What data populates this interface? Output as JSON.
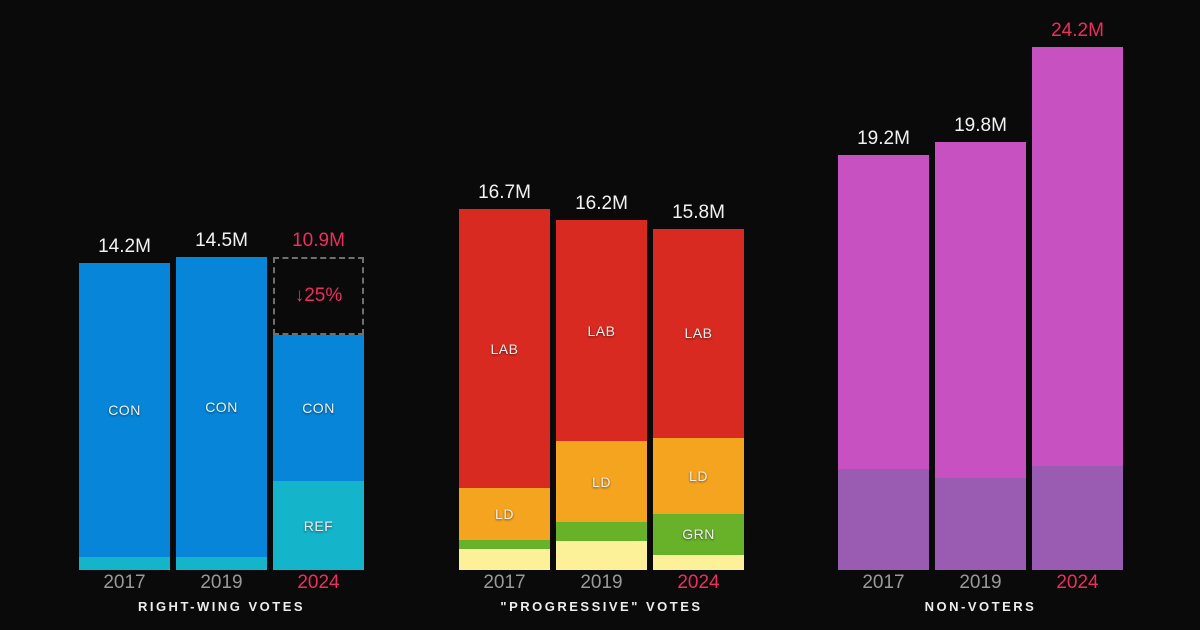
{
  "colors": {
    "background": "#0a0a0a",
    "con": "#0786d9",
    "ref": "#14b4ca",
    "lab": "#d92a22",
    "ld": "#f5a41f",
    "grn": "#68b229",
    "oth": "#fcf098",
    "nonvoter": "#c751c1",
    "nonvoter_shade": "#9a5cb3",
    "accent_pink": "#ed2d5d",
    "year_gray": "#999999",
    "label_white": "#f2f2f2",
    "ghost_border": "#6f6f6f"
  },
  "chart_data": {
    "type": "bar",
    "stacked": true,
    "unit": "M = millions of votes",
    "ylim": [
      0,
      24.2
    ],
    "categories": [
      "2017",
      "2019",
      "2024"
    ],
    "groups": [
      {
        "caption": "RIGHT-WING VOTES",
        "bars": [
          {
            "year": "2017",
            "year_highlight": false,
            "total": 14.2,
            "total_label": "14.2M",
            "total_label_highlight": false,
            "ghost": null,
            "segments": [
              {
                "label": "CON",
                "key": "con",
                "value": 13.6,
                "labeled": true
              },
              {
                "label": "",
                "key": "ref",
                "value": 0.6,
                "labeled": false
              }
            ]
          },
          {
            "year": "2019",
            "year_highlight": false,
            "total": 14.5,
            "total_label": "14.5M",
            "total_label_highlight": false,
            "ghost": null,
            "segments": [
              {
                "label": "CON",
                "key": "con",
                "value": 13.9,
                "labeled": true
              },
              {
                "label": "",
                "key": "ref",
                "value": 0.6,
                "labeled": false
              }
            ]
          },
          {
            "year": "2024",
            "year_highlight": true,
            "total": 10.9,
            "total_label": "10.9M",
            "total_label_highlight": true,
            "ghost": {
              "to_total": 14.5,
              "label": "↓25%"
            },
            "segments": [
              {
                "label": "CON",
                "key": "con",
                "value": 6.8,
                "labeled": true
              },
              {
                "label": "REF",
                "key": "ref",
                "value": 4.1,
                "labeled": true
              }
            ]
          }
        ]
      },
      {
        "caption": "\"PROGRESSIVE\" VOTES",
        "bars": [
          {
            "year": "2017",
            "year_highlight": false,
            "total": 16.7,
            "total_label": "16.7M",
            "total_label_highlight": false,
            "ghost": null,
            "segments": [
              {
                "label": "LAB",
                "key": "lab",
                "value": 12.9,
                "labeled": true
              },
              {
                "label": "LD",
                "key": "ld",
                "value": 2.4,
                "labeled": true
              },
              {
                "label": "",
                "key": "grn",
                "value": 0.45,
                "labeled": false
              },
              {
                "label": "",
                "key": "oth",
                "value": 0.95,
                "labeled": false
              }
            ]
          },
          {
            "year": "2019",
            "year_highlight": false,
            "total": 16.2,
            "total_label": "16.2M",
            "total_label_highlight": false,
            "ghost": null,
            "segments": [
              {
                "label": "LAB",
                "key": "lab",
                "value": 10.25,
                "labeled": true
              },
              {
                "label": "LD",
                "key": "ld",
                "value": 3.75,
                "labeled": true
              },
              {
                "label": "",
                "key": "grn",
                "value": 0.85,
                "labeled": false
              },
              {
                "label": "",
                "key": "oth",
                "value": 1.35,
                "labeled": false
              }
            ]
          },
          {
            "year": "2024",
            "year_highlight": true,
            "total": 15.8,
            "total_label": "15.8M",
            "total_label_highlight": false,
            "ghost": null,
            "segments": [
              {
                "label": "LAB",
                "key": "lab",
                "value": 9.7,
                "labeled": true
              },
              {
                "label": "LD",
                "key": "ld",
                "value": 3.5,
                "labeled": true
              },
              {
                "label": "GRN",
                "key": "grn",
                "value": 1.9,
                "labeled": true
              },
              {
                "label": "",
                "key": "oth",
                "value": 0.7,
                "labeled": false
              }
            ]
          }
        ]
      },
      {
        "caption": "NON-VOTERS",
        "bars": [
          {
            "year": "2017",
            "year_highlight": false,
            "total": 19.2,
            "total_label": "19.2M",
            "total_label_highlight": false,
            "ghost": null,
            "segments": [
              {
                "label": "",
                "key": "nonvoter",
                "value": 14.5,
                "labeled": false
              },
              {
                "label": "",
                "key": "nonvoter_shade",
                "value": 4.7,
                "labeled": false
              }
            ]
          },
          {
            "year": "2019",
            "year_highlight": false,
            "total": 19.8,
            "total_label": "19.8M",
            "total_label_highlight": false,
            "ghost": null,
            "segments": [
              {
                "label": "",
                "key": "nonvoter",
                "value": 15.55,
                "labeled": false
              },
              {
                "label": "",
                "key": "nonvoter_shade",
                "value": 4.25,
                "labeled": false
              }
            ]
          },
          {
            "year": "2024",
            "year_highlight": true,
            "total": 24.2,
            "total_label": "24.2M",
            "total_label_highlight": true,
            "ghost": null,
            "segments": [
              {
                "label": "",
                "key": "nonvoter",
                "value": 19.4,
                "labeled": false
              },
              {
                "label": "",
                "key": "nonvoter_shade",
                "value": 4.8,
                "labeled": false
              }
            ]
          }
        ]
      }
    ]
  }
}
